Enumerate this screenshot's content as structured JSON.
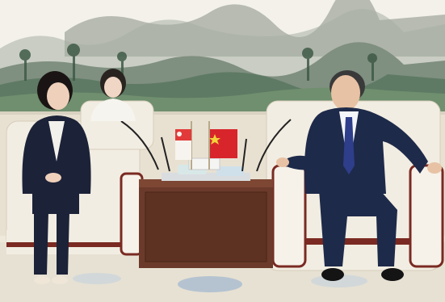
{
  "scene": {
    "description_free": true
  },
  "desk_sign": {
    "text": ""
  },
  "colors": {
    "wall": "#efe9dc",
    "painting_sky": "#f3f1ea",
    "painting_mountain": "#8b968a",
    "painting_trees": "#5e7a64",
    "chair_fabric": "#f2ede2",
    "chair_trim": "#7a2a22",
    "table": "#6b3a2a",
    "carpet": "#e9e3d4",
    "flag_china": "#d8252b",
    "flag_singapore_red": "#e23a3a",
    "suit_dark": "#1c2238",
    "suit_navy": "#1e2a4a",
    "tie": "#2f3e8a"
  }
}
